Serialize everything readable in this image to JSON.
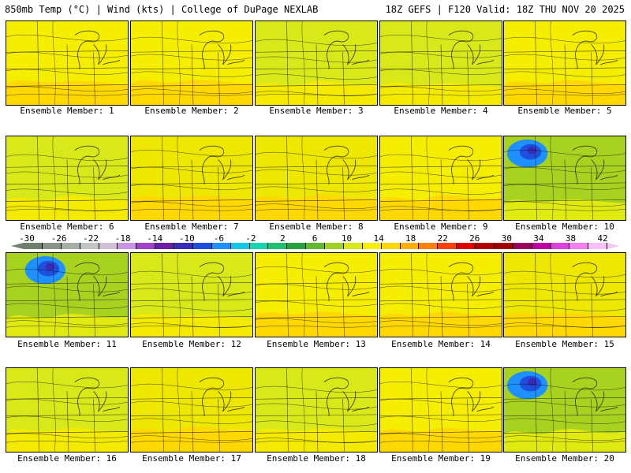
{
  "header": {
    "left": "850mb Temp (°C) | Wind (kts) | College of DuPage NEXLAB",
    "right": "18Z GEFS | F120 Valid: 18Z THU NOV 20 2025"
  },
  "colorbar": {
    "ticks": [
      "-30",
      "-26",
      "-22",
      "-18",
      "-14",
      "-10",
      "-6",
      "-2",
      "2",
      "6",
      "10",
      "14",
      "18",
      "22",
      "26",
      "30",
      "34",
      "38",
      "42"
    ],
    "colors": [
      "#6e7f6e",
      "#8a958a",
      "#a6aea6",
      "#c2c6c2",
      "#cfc0d8",
      "#c893e0",
      "#a040c8",
      "#6a1ea8",
      "#3a2ab8",
      "#1e50e0",
      "#1e90ff",
      "#12c8e8",
      "#12d8b0",
      "#20c070",
      "#2aa042",
      "#60b830",
      "#a0d020",
      "#d8e818",
      "#f8f000",
      "#ffd800",
      "#ffb000",
      "#ff8000",
      "#ff4000",
      "#e00000",
      "#b40000",
      "#a00000",
      "#a00060",
      "#c000a0",
      "#e040e0",
      "#f080f0",
      "#f8c0f8"
    ],
    "arrow_left_color": "#6e7f6e",
    "arrow_right_color": "#f0c8f0"
  },
  "members": [
    {
      "label": "Ensemble Member: 1",
      "scheme": "warm",
      "cold": 0.2
    },
    {
      "label": "Ensemble Member: 2",
      "scheme": "warm",
      "cold": 0.15
    },
    {
      "label": "Ensemble Member: 3",
      "scheme": "cool",
      "cold": 0.45
    },
    {
      "label": "Ensemble Member: 4",
      "scheme": "cool",
      "cold": 0.55
    },
    {
      "label": "Ensemble Member: 5",
      "scheme": "warm",
      "cold": 0.25
    },
    {
      "label": "Ensemble Member: 6",
      "scheme": "cool",
      "cold": 0.4
    },
    {
      "label": "Ensemble Member: 7",
      "scheme": "green",
      "cold": 0.2
    },
    {
      "label": "Ensemble Member: 8",
      "scheme": "green",
      "cold": 0.2
    },
    {
      "label": "Ensemble Member: 9",
      "scheme": "warm",
      "cold": 0.35
    },
    {
      "label": "Ensemble Member: 10",
      "scheme": "cold",
      "cold": 0.8
    },
    {
      "label": "Ensemble Member: 11",
      "scheme": "cold",
      "cold": 0.6
    },
    {
      "label": "Ensemble Member: 12",
      "scheme": "cool",
      "cold": 0.5
    },
    {
      "label": "Ensemble Member: 13",
      "scheme": "warm",
      "cold": 0.15
    },
    {
      "label": "Ensemble Member: 14",
      "scheme": "warm",
      "cold": 0.3
    },
    {
      "label": "Ensemble Member: 15",
      "scheme": "green",
      "cold": 0.25
    },
    {
      "label": "Ensemble Member: 16",
      "scheme": "cool",
      "cold": 0.4
    },
    {
      "label": "Ensemble Member: 17",
      "scheme": "green",
      "cold": 0.3
    },
    {
      "label": "Ensemble Member: 18",
      "scheme": "cool",
      "cold": 0.35
    },
    {
      "label": "Ensemble Member: 19",
      "scheme": "warm",
      "cold": 0.4
    },
    {
      "label": "Ensemble Member: 20",
      "scheme": "cold",
      "cold": 0.7
    }
  ]
}
